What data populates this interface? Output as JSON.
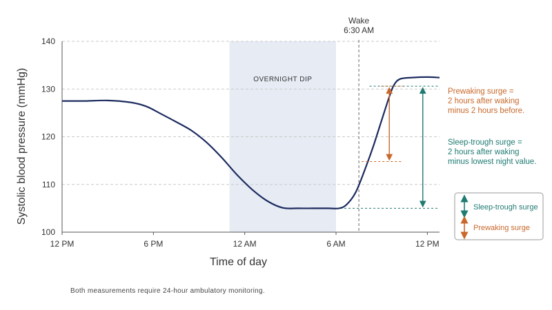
{
  "chart_data": {
    "type": "line",
    "xlabel": "Time of day",
    "ylabel": "Systolic blood pressure (mmHg)",
    "ylim": [
      100,
      140
    ],
    "xlim": [
      0,
      24.8
    ],
    "x_ticks": [
      {
        "value": 0,
        "label": "12 PM"
      },
      {
        "value": 6,
        "label": "6 PM"
      },
      {
        "value": 12,
        "label": "12 AM"
      },
      {
        "value": 18,
        "label": "6 AM"
      },
      {
        "value": 24,
        "label": "12 PM"
      }
    ],
    "y_ticks": [
      100,
      110,
      120,
      130,
      140
    ],
    "grid": "horizontal dashed",
    "series": [
      {
        "x": [
          0,
          1.5,
          3,
          4.5,
          5.5,
          6.5,
          7.5,
          8.5,
          9.5,
          10.5,
          11.5,
          12.5,
          13.5,
          14.5,
          15.5,
          16.5,
          17.5,
          18.2,
          18.7,
          19.3,
          20,
          20.5,
          21,
          21.5,
          21.8,
          22.2,
          23,
          24,
          24.8
        ],
        "y": [
          127.5,
          127.5,
          127.6,
          127.2,
          126.4,
          124.8,
          123.1,
          121.3,
          118.8,
          115.6,
          112.0,
          108.9,
          106.5,
          105.1,
          105.0,
          105.0,
          105.0,
          105.0,
          105.8,
          108.4,
          114.0,
          118.5,
          123.5,
          128.4,
          130.8,
          132.1,
          132.4,
          132.5,
          132.4
        ],
        "color": "#1b2a5e"
      }
    ],
    "band": {
      "label": "OVERNIGHT DIP",
      "x_start": 11,
      "x_end": 18,
      "color": "#e6ebf4"
    },
    "wake_line": {
      "x": 19.5,
      "label_line1": "Wake",
      "label_line2": "6:30 AM"
    },
    "reference_lines": [
      {
        "y": 105,
        "x_start": 18,
        "x_end": 24.8,
        "color": "#1f7a72"
      },
      {
        "y": 130.6,
        "x_start": 20.2,
        "x_end": 24.8,
        "color": "#1f7a72"
      }
    ],
    "prewaking_surge": {
      "x": 21.5,
      "y_from": 114.8,
      "y_to": 130.6,
      "color": "#c8682b",
      "lines": [
        "Prewaking surge =",
        "2 hours after waking",
        "minus 2 hours before."
      ]
    },
    "sleep_trough_surge": {
      "x": 23.7,
      "y_from": 105,
      "y_to": 130.6,
      "color": "#1f7a72",
      "lines": [
        "Sleep-trough surge =",
        "2 hours after waking",
        "minus lowest night value."
      ]
    },
    "legend": {
      "position": "bottom-right",
      "items": [
        {
          "label": "Sleep-trough surge",
          "color": "#1f7a72"
        },
        {
          "label": "Prewaking surge",
          "color": "#c8682b"
        }
      ]
    },
    "footnote": "Both measurements require 24-hour ambulatory monitoring."
  }
}
